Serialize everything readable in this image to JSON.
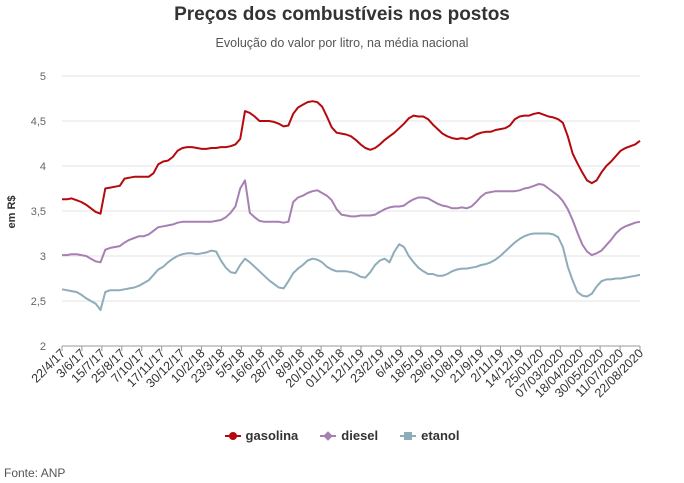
{
  "chart_data": {
    "type": "line",
    "title": "Preços dos combustíveis nos postos",
    "subtitle": "Evolução do valor por litro, na média nacional",
    "ylabel": "em R$",
    "ylim": [
      2,
      5
    ],
    "yticks": [
      "2",
      "2,5",
      "3",
      "3,5",
      "4",
      "4,5",
      "5"
    ],
    "x_tick_labels": [
      "22/4/17",
      "3/6/17",
      "15/7/17",
      "25/8/17",
      "7/10/17",
      "17/11/17",
      "30/12/17",
      "10/2/18",
      "23/3/18",
      "5/5/18",
      "16/6/18",
      "28/7/18",
      "8/9/18",
      "20/10/18",
      "01/12/18",
      "12/1/19",
      "23/2/19",
      "6/4/19",
      "18/5/19",
      "29/6/19",
      "10/8/19",
      "21/9/19",
      "2/11/19",
      "14/12/19",
      "25/01/20",
      "07/03/2020",
      "18/04/2020",
      "30/05/2020",
      "11/07/2020",
      "22/08/2020"
    ],
    "source": "Fonte: ANP",
    "series": [
      {
        "name": "gasolina",
        "color": "#b5090e",
        "marker": "circle",
        "values": [
          3.63,
          3.63,
          3.64,
          3.62,
          3.6,
          3.57,
          3.53,
          3.49,
          3.47,
          3.75,
          3.76,
          3.77,
          3.78,
          3.86,
          3.87,
          3.88,
          3.88,
          3.88,
          3.88,
          3.92,
          4.02,
          4.05,
          4.06,
          4.1,
          4.17,
          4.2,
          4.21,
          4.21,
          4.2,
          4.19,
          4.19,
          4.2,
          4.2,
          4.21,
          4.21,
          4.22,
          4.24,
          4.3,
          4.61,
          4.59,
          4.55,
          4.5,
          4.5,
          4.5,
          4.49,
          4.47,
          4.44,
          4.45,
          4.58,
          4.65,
          4.68,
          4.71,
          4.72,
          4.71,
          4.66,
          4.55,
          4.43,
          4.37,
          4.36,
          4.35,
          4.33,
          4.29,
          4.24,
          4.2,
          4.18,
          4.2,
          4.24,
          4.29,
          4.33,
          4.37,
          4.42,
          4.47,
          4.53,
          4.56,
          4.55,
          4.55,
          4.52,
          4.46,
          4.41,
          4.36,
          4.33,
          4.31,
          4.3,
          4.31,
          4.3,
          4.32,
          4.35,
          4.37,
          4.38,
          4.38,
          4.4,
          4.41,
          4.42,
          4.45,
          4.52,
          4.55,
          4.56,
          4.56,
          4.58,
          4.59,
          4.57,
          4.55,
          4.54,
          4.52,
          4.48,
          4.33,
          4.14,
          4.03,
          3.93,
          3.84,
          3.81,
          3.84,
          3.93,
          4.0,
          4.05,
          4.11,
          4.17,
          4.2,
          4.22,
          4.24,
          4.28
        ]
      },
      {
        "name": "diesel",
        "color": "#a77fb3",
        "marker": "diamond",
        "values": [
          3.01,
          3.01,
          3.02,
          3.02,
          3.01,
          3.0,
          2.97,
          2.94,
          2.93,
          3.07,
          3.09,
          3.1,
          3.11,
          3.15,
          3.18,
          3.2,
          3.22,
          3.22,
          3.24,
          3.28,
          3.32,
          3.33,
          3.34,
          3.35,
          3.37,
          3.38,
          3.38,
          3.38,
          3.38,
          3.38,
          3.38,
          3.38,
          3.39,
          3.4,
          3.43,
          3.48,
          3.55,
          3.75,
          3.84,
          3.48,
          3.43,
          3.39,
          3.38,
          3.38,
          3.38,
          3.38,
          3.37,
          3.38,
          3.6,
          3.65,
          3.67,
          3.7,
          3.72,
          3.73,
          3.7,
          3.67,
          3.62,
          3.52,
          3.46,
          3.45,
          3.44,
          3.44,
          3.45,
          3.45,
          3.45,
          3.46,
          3.49,
          3.52,
          3.54,
          3.55,
          3.55,
          3.56,
          3.6,
          3.63,
          3.65,
          3.65,
          3.64,
          3.61,
          3.58,
          3.56,
          3.55,
          3.53,
          3.53,
          3.54,
          3.53,
          3.55,
          3.6,
          3.66,
          3.7,
          3.71,
          3.72,
          3.72,
          3.72,
          3.72,
          3.72,
          3.73,
          3.75,
          3.76,
          3.78,
          3.8,
          3.79,
          3.75,
          3.71,
          3.67,
          3.61,
          3.52,
          3.4,
          3.26,
          3.13,
          3.05,
          3.01,
          3.03,
          3.06,
          3.12,
          3.18,
          3.25,
          3.3,
          3.33,
          3.35,
          3.37,
          3.38
        ]
      },
      {
        "name": "etanol",
        "color": "#8eacba",
        "marker": "square",
        "values": [
          2.63,
          2.62,
          2.61,
          2.6,
          2.57,
          2.53,
          2.5,
          2.47,
          2.4,
          2.6,
          2.62,
          2.62,
          2.62,
          2.63,
          2.64,
          2.65,
          2.67,
          2.7,
          2.73,
          2.79,
          2.85,
          2.88,
          2.93,
          2.97,
          3.0,
          3.02,
          3.03,
          3.03,
          3.02,
          3.03,
          3.04,
          3.06,
          3.05,
          2.95,
          2.87,
          2.82,
          2.81,
          2.9,
          2.97,
          2.93,
          2.88,
          2.83,
          2.78,
          2.73,
          2.69,
          2.65,
          2.64,
          2.72,
          2.81,
          2.86,
          2.9,
          2.95,
          2.97,
          2.96,
          2.93,
          2.88,
          2.85,
          2.83,
          2.83,
          2.83,
          2.82,
          2.8,
          2.77,
          2.76,
          2.82,
          2.9,
          2.95,
          2.97,
          2.93,
          3.05,
          3.13,
          3.1,
          3.0,
          2.93,
          2.87,
          2.83,
          2.8,
          2.8,
          2.78,
          2.78,
          2.8,
          2.83,
          2.85,
          2.86,
          2.86,
          2.87,
          2.88,
          2.9,
          2.91,
          2.93,
          2.96,
          3.0,
          3.05,
          3.1,
          3.15,
          3.19,
          3.22,
          3.24,
          3.25,
          3.25,
          3.25,
          3.25,
          3.24,
          3.21,
          3.1,
          2.88,
          2.73,
          2.6,
          2.56,
          2.55,
          2.58,
          2.66,
          2.72,
          2.74,
          2.74,
          2.75,
          2.75,
          2.76,
          2.77,
          2.78,
          2.79
        ]
      }
    ]
  }
}
